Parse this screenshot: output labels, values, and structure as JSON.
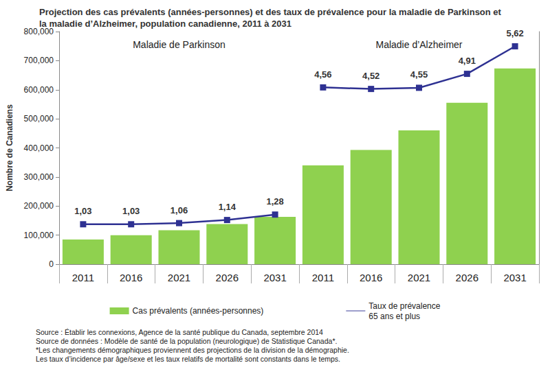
{
  "chart_data": {
    "type": "bar",
    "title": "Projection des cas prévalents (années-personnes) et des taux de prévalence pour la maladie de Parkinson et la maladie d’Alzheimer, population canadienne, 2011 à 2031",
    "y_label": "Nombre de Canadiens",
    "groups": [
      "Maladie de Parkinson",
      "Maladie d’Alzheimer"
    ],
    "categories": [
      "2011",
      "2016",
      "2021",
      "2026",
      "2031",
      "2011",
      "2016",
      "2021",
      "2026",
      "2031"
    ],
    "series": [
      {
        "name": "Cas prévalents (années-personnes)",
        "type": "bar",
        "color": "#8fd14f",
        "values": [
          85000,
          100000,
          117000,
          138000,
          163000,
          340000,
          393000,
          460000,
          555000,
          673000
        ]
      },
      {
        "name": "Taux de prévalence\n65 ans et plus",
        "type": "line",
        "axis": "y2",
        "color": "#2e3192",
        "marker": "square",
        "data_labels": true,
        "values": [
          1.03,
          1.03,
          1.06,
          1.14,
          1.28,
          4.56,
          4.52,
          4.55,
          4.91,
          5.62
        ],
        "value_labels": [
          "1,03",
          "1,03",
          "1,06",
          "1,14",
          "1,28",
          "4,56",
          "4,52",
          "4,55",
          "4,91",
          "5,62"
        ]
      }
    ],
    "ylim": [
      0,
      800000
    ],
    "yticks": [
      0,
      {
        "value": 100000,
        "label": "100,000"
      },
      {
        "value": 200000,
        "label": "200,000"
      },
      {
        "value": 300000,
        "label": "300,000"
      },
      {
        "value": 400000,
        "label": "400,000"
      },
      {
        "value": 500000,
        "label": "500,000"
      },
      {
        "value": 600000,
        "label": "600,000"
      },
      {
        "value": 700000,
        "label": "700,000"
      },
      {
        "value": 800000,
        "label": "800,000"
      }
    ],
    "y2lim": [
      0,
      6
    ],
    "grid": false,
    "legend": "bottom",
    "notes": [
      "Source : Établir les connexions, Agence de la santé publique du Canada, septembre 2014",
      "Source de données : Modèle de santé de la population (neurologique) de Statistique Canada*.",
      "*Les changements démographiques proviennent des projections de la division de la démographie.",
      "Les taux d’incidence par âge/sexe et les taux relatifs de mortalité sont constants dans le temps."
    ]
  }
}
